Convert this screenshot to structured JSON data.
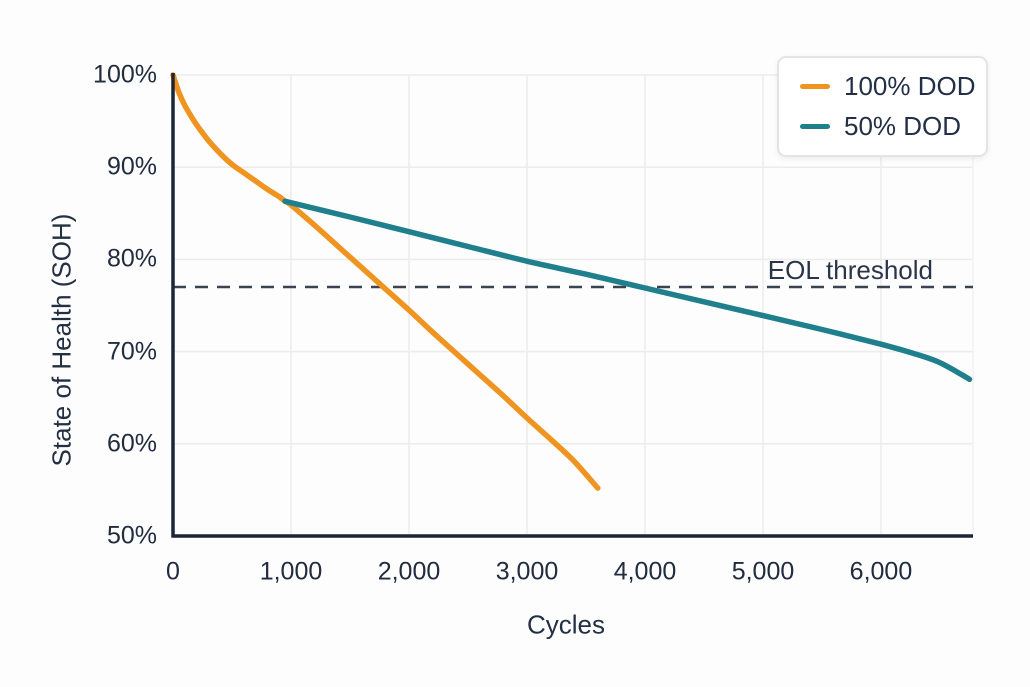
{
  "chart_data": {
    "type": "line",
    "title": "",
    "xlabel": "Cycles",
    "ylabel": "State of Health (SOH)",
    "xlim": [
      0,
      6780
    ],
    "ylim": [
      50,
      100
    ],
    "grid": true,
    "legend_position": "top-right",
    "x_ticks": [
      {
        "value": 0,
        "label": "0"
      },
      {
        "value": 1000,
        "label": "1,000"
      },
      {
        "value": 2000,
        "label": "2,000"
      },
      {
        "value": 3000,
        "label": "3,000"
      },
      {
        "value": 4000,
        "label": "4,000"
      },
      {
        "value": 5000,
        "label": "5,000"
      },
      {
        "value": 6000,
        "label": "6,000"
      }
    ],
    "y_ticks": [
      {
        "value": 100,
        "label": "100%"
      },
      {
        "value": 90,
        "label": "90%"
      },
      {
        "value": 80,
        "label": "80%"
      },
      {
        "value": 70,
        "label": "70%"
      },
      {
        "value": 60,
        "label": "60%"
      },
      {
        "value": 50,
        "label": "50%"
      }
    ],
    "series": [
      {
        "name": "100% DOD",
        "color": "#ef9420",
        "x": [
          0,
          50,
          100,
          150,
          200,
          300,
          400,
          500,
          600,
          700,
          800,
          900,
          950,
          1000,
          1200,
          1400,
          1600,
          1800,
          2000,
          2200,
          2400,
          2600,
          2800,
          3000,
          3200,
          3400,
          3600
        ],
        "y": [
          100,
          98.1,
          96.7,
          95.6,
          94.6,
          92.9,
          91.5,
          90.3,
          89.4,
          88.5,
          87.6,
          86.8,
          86.3,
          85.9,
          83.7,
          81.4,
          79.1,
          76.8,
          74.5,
          72.1,
          69.8,
          67.5,
          65.2,
          62.8,
          60.5,
          58.1,
          55.2
        ]
      },
      {
        "name": "50% DOD",
        "color": "#1f7f8c",
        "x": [
          950,
          1500,
          2000,
          2500,
          3000,
          3500,
          4000,
          4500,
          5000,
          5500,
          6000,
          6250,
          6500,
          6750
        ],
        "y": [
          86.3,
          84.6,
          83.0,
          81.4,
          79.8,
          78.4,
          76.9,
          75.4,
          73.9,
          72.4,
          70.8,
          69.9,
          68.8,
          67.0
        ]
      }
    ],
    "annotations": [
      {
        "type": "hline",
        "y": 77,
        "label": "EOL threshold",
        "style": "dashed",
        "color": "#3a4450"
      }
    ],
    "colors": {
      "axis": "#1c2637",
      "grid": "#ececec",
      "text": "#222c3f",
      "threshold": "#3a4450",
      "background": "#fdfdfd"
    }
  }
}
